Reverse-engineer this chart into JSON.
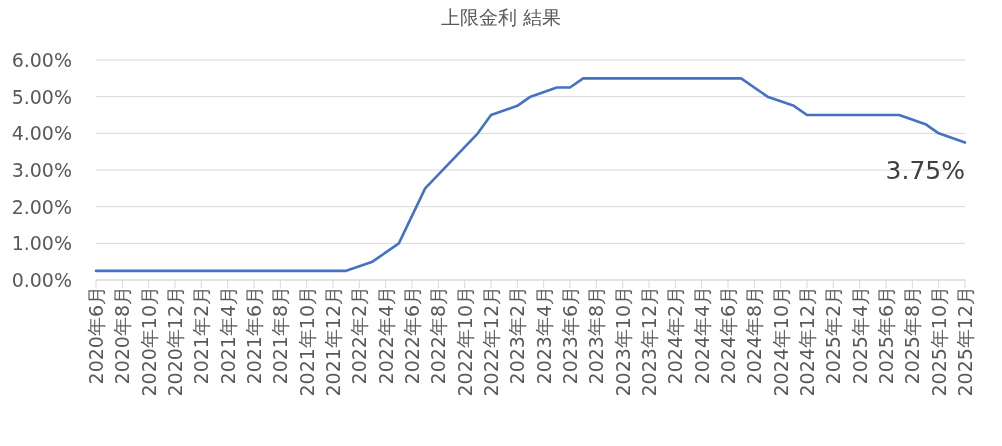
{
  "chart_data": {
    "type": "line",
    "title": "上限金利 結果",
    "x": [
      "2020-06",
      "2022-01",
      "2022-03",
      "2022-05",
      "2022-07",
      "2022-09",
      "2022-11",
      "2022-12",
      "2023-02",
      "2023-03",
      "2023-05",
      "2023-06",
      "2023-07",
      "2024-07",
      "2024-09",
      "2024-11",
      "2024-12",
      "2025-07",
      "2025-09",
      "2025-10",
      "2025-12"
    ],
    "series": [
      {
        "color": "#4472c4",
        "values": [
          0.25,
          0.25,
          0.5,
          1.0,
          2.5,
          3.25,
          4.0,
          4.5,
          4.75,
          5.0,
          5.25,
          5.25,
          5.5,
          5.5,
          5.0,
          4.75,
          4.5,
          4.5,
          4.25,
          4.0,
          3.75
        ]
      }
    ],
    "xlim": [
      "2020-06",
      "2025-12"
    ],
    "xticks": [
      {
        "value": "2020-06",
        "label": "2020年6月"
      },
      {
        "value": "2020-08",
        "label": "2020年8月"
      },
      {
        "value": "2020-10",
        "label": "2020年10月"
      },
      {
        "value": "2020-12",
        "label": "2020年12月"
      },
      {
        "value": "2021-02",
        "label": "2021年2月"
      },
      {
        "value": "2021-04",
        "label": "2021年4月"
      },
      {
        "value": "2021-06",
        "label": "2021年6月"
      },
      {
        "value": "2021-08",
        "label": "2021年8月"
      },
      {
        "value": "2021-10",
        "label": "2021年10月"
      },
      {
        "value": "2021-12",
        "label": "2021年12月"
      },
      {
        "value": "2022-02",
        "label": "2022年2月"
      },
      {
        "value": "2022-04",
        "label": "2022年4月"
      },
      {
        "value": "2022-06",
        "label": "2022年6月"
      },
      {
        "value": "2022-08",
        "label": "2022年8月"
      },
      {
        "value": "2022-10",
        "label": "2022年10月"
      },
      {
        "value": "2022-12",
        "label": "2022年12月"
      },
      {
        "value": "2023-02",
        "label": "2023年2月"
      },
      {
        "value": "2023-04",
        "label": "2023年4月"
      },
      {
        "value": "2023-06",
        "label": "2023年6月"
      },
      {
        "value": "2023-08",
        "label": "2023年8月"
      },
      {
        "value": "2023-10",
        "label": "2023年10月"
      },
      {
        "value": "2023-12",
        "label": "2023年12月"
      },
      {
        "value": "2024-02",
        "label": "2024年2月"
      },
      {
        "value": "2024-04",
        "label": "2024年4月"
      },
      {
        "value": "2024-06",
        "label": "2024年6月"
      },
      {
        "value": "2024-08",
        "label": "2024年8月"
      },
      {
        "value": "2024-10",
        "label": "2024年10月"
      },
      {
        "value": "2024-12",
        "label": "2024年12月"
      },
      {
        "value": "2025-02",
        "label": "2025年2月"
      },
      {
        "value": "2025-04",
        "label": "2025年4月"
      },
      {
        "value": "2025-06",
        "label": "2025年6月"
      },
      {
        "value": "2025-08",
        "label": "2025年8月"
      },
      {
        "value": "2025-10",
        "label": "2025年10月"
      },
      {
        "value": "2025-12",
        "label": "2025年12月"
      }
    ],
    "ylim": [
      0,
      6
    ],
    "yticks": [
      {
        "value": 0,
        "label": "0.00%"
      },
      {
        "value": 1,
        "label": "1.00%"
      },
      {
        "value": 2,
        "label": "2.00%"
      },
      {
        "value": 3,
        "label": "3.00%"
      },
      {
        "value": 4,
        "label": "4.00%"
      },
      {
        "value": 5,
        "label": "5.00%"
      },
      {
        "value": 6,
        "label": "6.00%"
      }
    ],
    "grid": "y",
    "annotations": [
      {
        "text": "3.75%",
        "x": "2025-12",
        "y": 3.75
      }
    ]
  }
}
